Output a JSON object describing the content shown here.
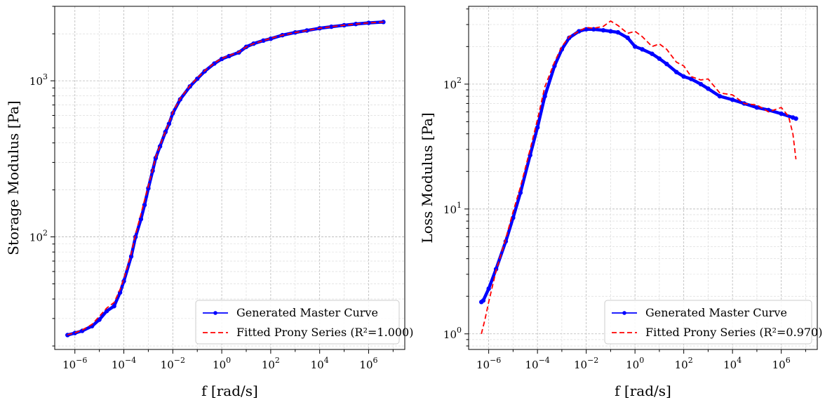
{
  "chart_data": [
    {
      "type": "line",
      "xlabel": "f [rad/s]",
      "ylabel": "Storage Modulus [Pa]",
      "xscale": "log",
      "yscale": "log",
      "xlim": [
        1.5e-07,
        30000000.0
      ],
      "ylim": [
        19,
        3000
      ],
      "x_ticks": [
        {
          "value": 1e-06,
          "base": "10",
          "exp": "−6"
        },
        {
          "value": 0.0001,
          "base": "10",
          "exp": "−4"
        },
        {
          "value": 0.01,
          "base": "10",
          "exp": "−2"
        },
        {
          "value": 1,
          "base": "10",
          "exp": "0"
        },
        {
          "value": 100,
          "base": "10",
          "exp": "2"
        },
        {
          "value": 10000,
          "base": "10",
          "exp": "4"
        },
        {
          "value": 1000000,
          "base": "10",
          "exp": "6"
        }
      ],
      "y_ticks": [
        {
          "value": 100,
          "base": "10",
          "exp": "2"
        },
        {
          "value": 1000,
          "base": "10",
          "exp": "3"
        }
      ],
      "grid": true,
      "legend": "lower-right",
      "series": [
        {
          "name": "Generated Master Curve",
          "color": "#0000ff",
          "style": "solid-dots",
          "x": [
            5e-07,
            1e-06,
            2e-06,
            5e-06,
            1e-05,
            2e-05,
            4e-05,
            7e-05,
            0.0001,
            0.0002,
            0.0003,
            0.0005,
            0.0007,
            0.001,
            0.0015,
            0.002,
            0.003,
            0.005,
            0.007,
            0.01,
            0.02,
            0.05,
            0.1,
            0.2,
            0.5,
            1,
            2,
            5,
            10,
            20,
            50,
            100,
            300,
            1000,
            3000,
            10000,
            30000,
            100000,
            300000,
            1000000,
            4000000
          ],
          "y": [
            23.5,
            24.2,
            25,
            26.8,
            29.5,
            33.5,
            36,
            44,
            52,
            75,
            100,
            130,
            160,
            205,
            265,
            320,
            380,
            470,
            530,
            620,
            760,
            920,
            1030,
            1150,
            1290,
            1380,
            1440,
            1520,
            1650,
            1730,
            1810,
            1860,
            1960,
            2040,
            2100,
            2170,
            2220,
            2270,
            2310,
            2350,
            2380
          ]
        },
        {
          "name": "Fitted Prony Series (R²=1.000)",
          "color": "#ff0000",
          "style": "dashed",
          "x": [
            5e-07,
            1e-06,
            2e-06,
            5e-06,
            1e-05,
            2e-05,
            4e-05,
            7e-05,
            0.0001,
            0.0002,
            0.0003,
            0.0005,
            0.0007,
            0.001,
            0.0015,
            0.002,
            0.003,
            0.005,
            0.007,
            0.01,
            0.02,
            0.05,
            0.1,
            0.2,
            0.5,
            1,
            2,
            5,
            10,
            20,
            50,
            100,
            300,
            1000,
            3000,
            10000,
            30000,
            100000,
            300000,
            1000000,
            4000000
          ],
          "y": [
            23.6,
            24.3,
            25.3,
            27.5,
            31,
            35,
            38,
            46,
            54,
            78,
            104,
            140,
            172,
            212,
            270,
            325,
            385,
            475,
            540,
            630,
            770,
            930,
            1040,
            1160,
            1300,
            1390,
            1450,
            1530,
            1650,
            1730,
            1810,
            1870,
            1960,
            2040,
            2100,
            2170,
            2220,
            2270,
            2310,
            2350,
            2380
          ]
        }
      ]
    },
    {
      "type": "line",
      "xlabel": "f [rad/s]",
      "ylabel": "Loss Modulus [Pa]",
      "xscale": "log",
      "yscale": "log",
      "xlim": [
        1.5e-07,
        30000000.0
      ],
      "ylim": [
        0.75,
        420
      ],
      "x_ticks": [
        {
          "value": 1e-06,
          "base": "10",
          "exp": "−6"
        },
        {
          "value": 0.0001,
          "base": "10",
          "exp": "−4"
        },
        {
          "value": 0.01,
          "base": "10",
          "exp": "−2"
        },
        {
          "value": 1,
          "base": "10",
          "exp": "0"
        },
        {
          "value": 100,
          "base": "10",
          "exp": "2"
        },
        {
          "value": 10000,
          "base": "10",
          "exp": "4"
        },
        {
          "value": 1000000,
          "base": "10",
          "exp": "6"
        }
      ],
      "y_ticks": [
        {
          "value": 1,
          "base": "10",
          "exp": "0"
        },
        {
          "value": 10,
          "base": "10",
          "exp": "1"
        },
        {
          "value": 100,
          "base": "10",
          "exp": "2"
        }
      ],
      "grid": true,
      "legend": "lower-right",
      "series": [
        {
          "name": "Generated Master Curve",
          "color": "#0000ff",
          "style": "solid-dots",
          "x": [
            5e-07,
            6e-07,
            1e-06,
            2e-06,
            5e-06,
            1e-05,
            2e-05,
            5e-05,
            0.0001,
            0.0002,
            0.0005,
            0.001,
            0.002,
            0.005,
            0.01,
            0.02,
            0.05,
            0.1,
            0.2,
            0.5,
            1,
            2,
            5,
            10,
            20,
            50,
            100,
            200,
            500,
            1000,
            3000,
            10000,
            30000,
            100000,
            300000,
            1000000,
            3000000,
            4000000
          ],
          "y": [
            1.8,
            1.85,
            2.3,
            3.3,
            5.5,
            8.5,
            13.5,
            27,
            45,
            80,
            140,
            190,
            235,
            265,
            275,
            275,
            270,
            265,
            260,
            235,
            200,
            190,
            175,
            160,
            145,
            125,
            115,
            110,
            100,
            92,
            80,
            75,
            70,
            65,
            62,
            58,
            54,
            53
          ]
        },
        {
          "name": "Fitted Prony Series (R²=0.970)",
          "color": "#ff0000",
          "style": "dashed",
          "x": [
            5e-07,
            7e-07,
            1e-06,
            2e-06,
            5e-06,
            1e-05,
            2e-05,
            5e-05,
            0.0001,
            0.0002,
            0.0005,
            0.001,
            0.002,
            0.005,
            0.01,
            0.02,
            0.05,
            0.1,
            0.2,
            0.5,
            1,
            2,
            5,
            10,
            20,
            50,
            100,
            200,
            500,
            1000,
            3000,
            10000,
            30000,
            100000,
            300000,
            1000000,
            2000000,
            3000000,
            4000000
          ],
          "y": [
            1.0,
            1.3,
            1.8,
            3.2,
            5.8,
            9.5,
            15,
            30,
            52,
            95,
            150,
            200,
            240,
            265,
            285,
            280,
            290,
            320,
            295,
            255,
            265,
            240,
            200,
            210,
            190,
            150,
            140,
            115,
            108,
            110,
            85,
            82,
            70,
            68,
            60,
            65,
            55,
            40,
            25
          ]
        }
      ]
    }
  ]
}
